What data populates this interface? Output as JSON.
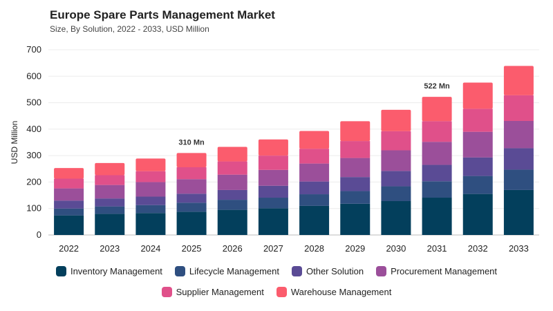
{
  "header": {
    "title": "Europe Spare Parts Management Market",
    "subtitle": "Size, By Solution, 2022 - 2033, USD Million"
  },
  "chart_data": {
    "type": "bar",
    "stacked": true,
    "title": "Europe Spare Parts Management Market",
    "subtitle": "Size, By Solution, 2022 - 2033, USD Million",
    "xlabel": "",
    "ylabel": "USD Million",
    "ylim": [
      0,
      700
    ],
    "yticks": [
      0,
      100,
      200,
      300,
      400,
      500,
      600,
      700
    ],
    "grid": true,
    "legend_position": "bottom",
    "categories": [
      "2022",
      "2023",
      "2024",
      "2025",
      "2026",
      "2027",
      "2028",
      "2029",
      "2030",
      "2031",
      "2032",
      "2033"
    ],
    "series": [
      {
        "name": "Inventory Management",
        "color": "#033f5c",
        "values": [
          74,
          80,
          83,
          88,
          95,
          101,
          110,
          118,
          128,
          141,
          155,
          170
        ]
      },
      {
        "name": "Lifecycle Management",
        "color": "#2f4f80",
        "values": [
          26,
          28,
          30,
          34,
          38,
          40,
          44,
          48,
          56,
          62,
          68,
          77
        ]
      },
      {
        "name": "Other Solution",
        "color": "#5a4b95",
        "values": [
          30,
          30,
          32,
          34,
          37,
          45,
          48,
          53,
          58,
          62,
          70,
          81
        ]
      },
      {
        "name": "Procurement Management",
        "color": "#9b4f9a",
        "values": [
          46,
          51,
          55,
          55,
          58,
          60,
          68,
          72,
          78,
          87,
          97,
          103
        ]
      },
      {
        "name": "Supplier Management",
        "color": "#e0508a",
        "values": [
          37,
          37,
          41,
          45,
          50,
          54,
          56,
          64,
          72,
          78,
          87,
          97
        ]
      },
      {
        "name": "Warehouse Management",
        "color": "#fb5c6d",
        "values": [
          40,
          46,
          48,
          54,
          55,
          61,
          67,
          75,
          81,
          92,
          99,
          111
        ]
      }
    ],
    "annotations": [
      {
        "category": "2025",
        "text": "310 Mn",
        "value": 310
      },
      {
        "category": "2031",
        "text": "522 Mn",
        "value": 522
      }
    ]
  }
}
